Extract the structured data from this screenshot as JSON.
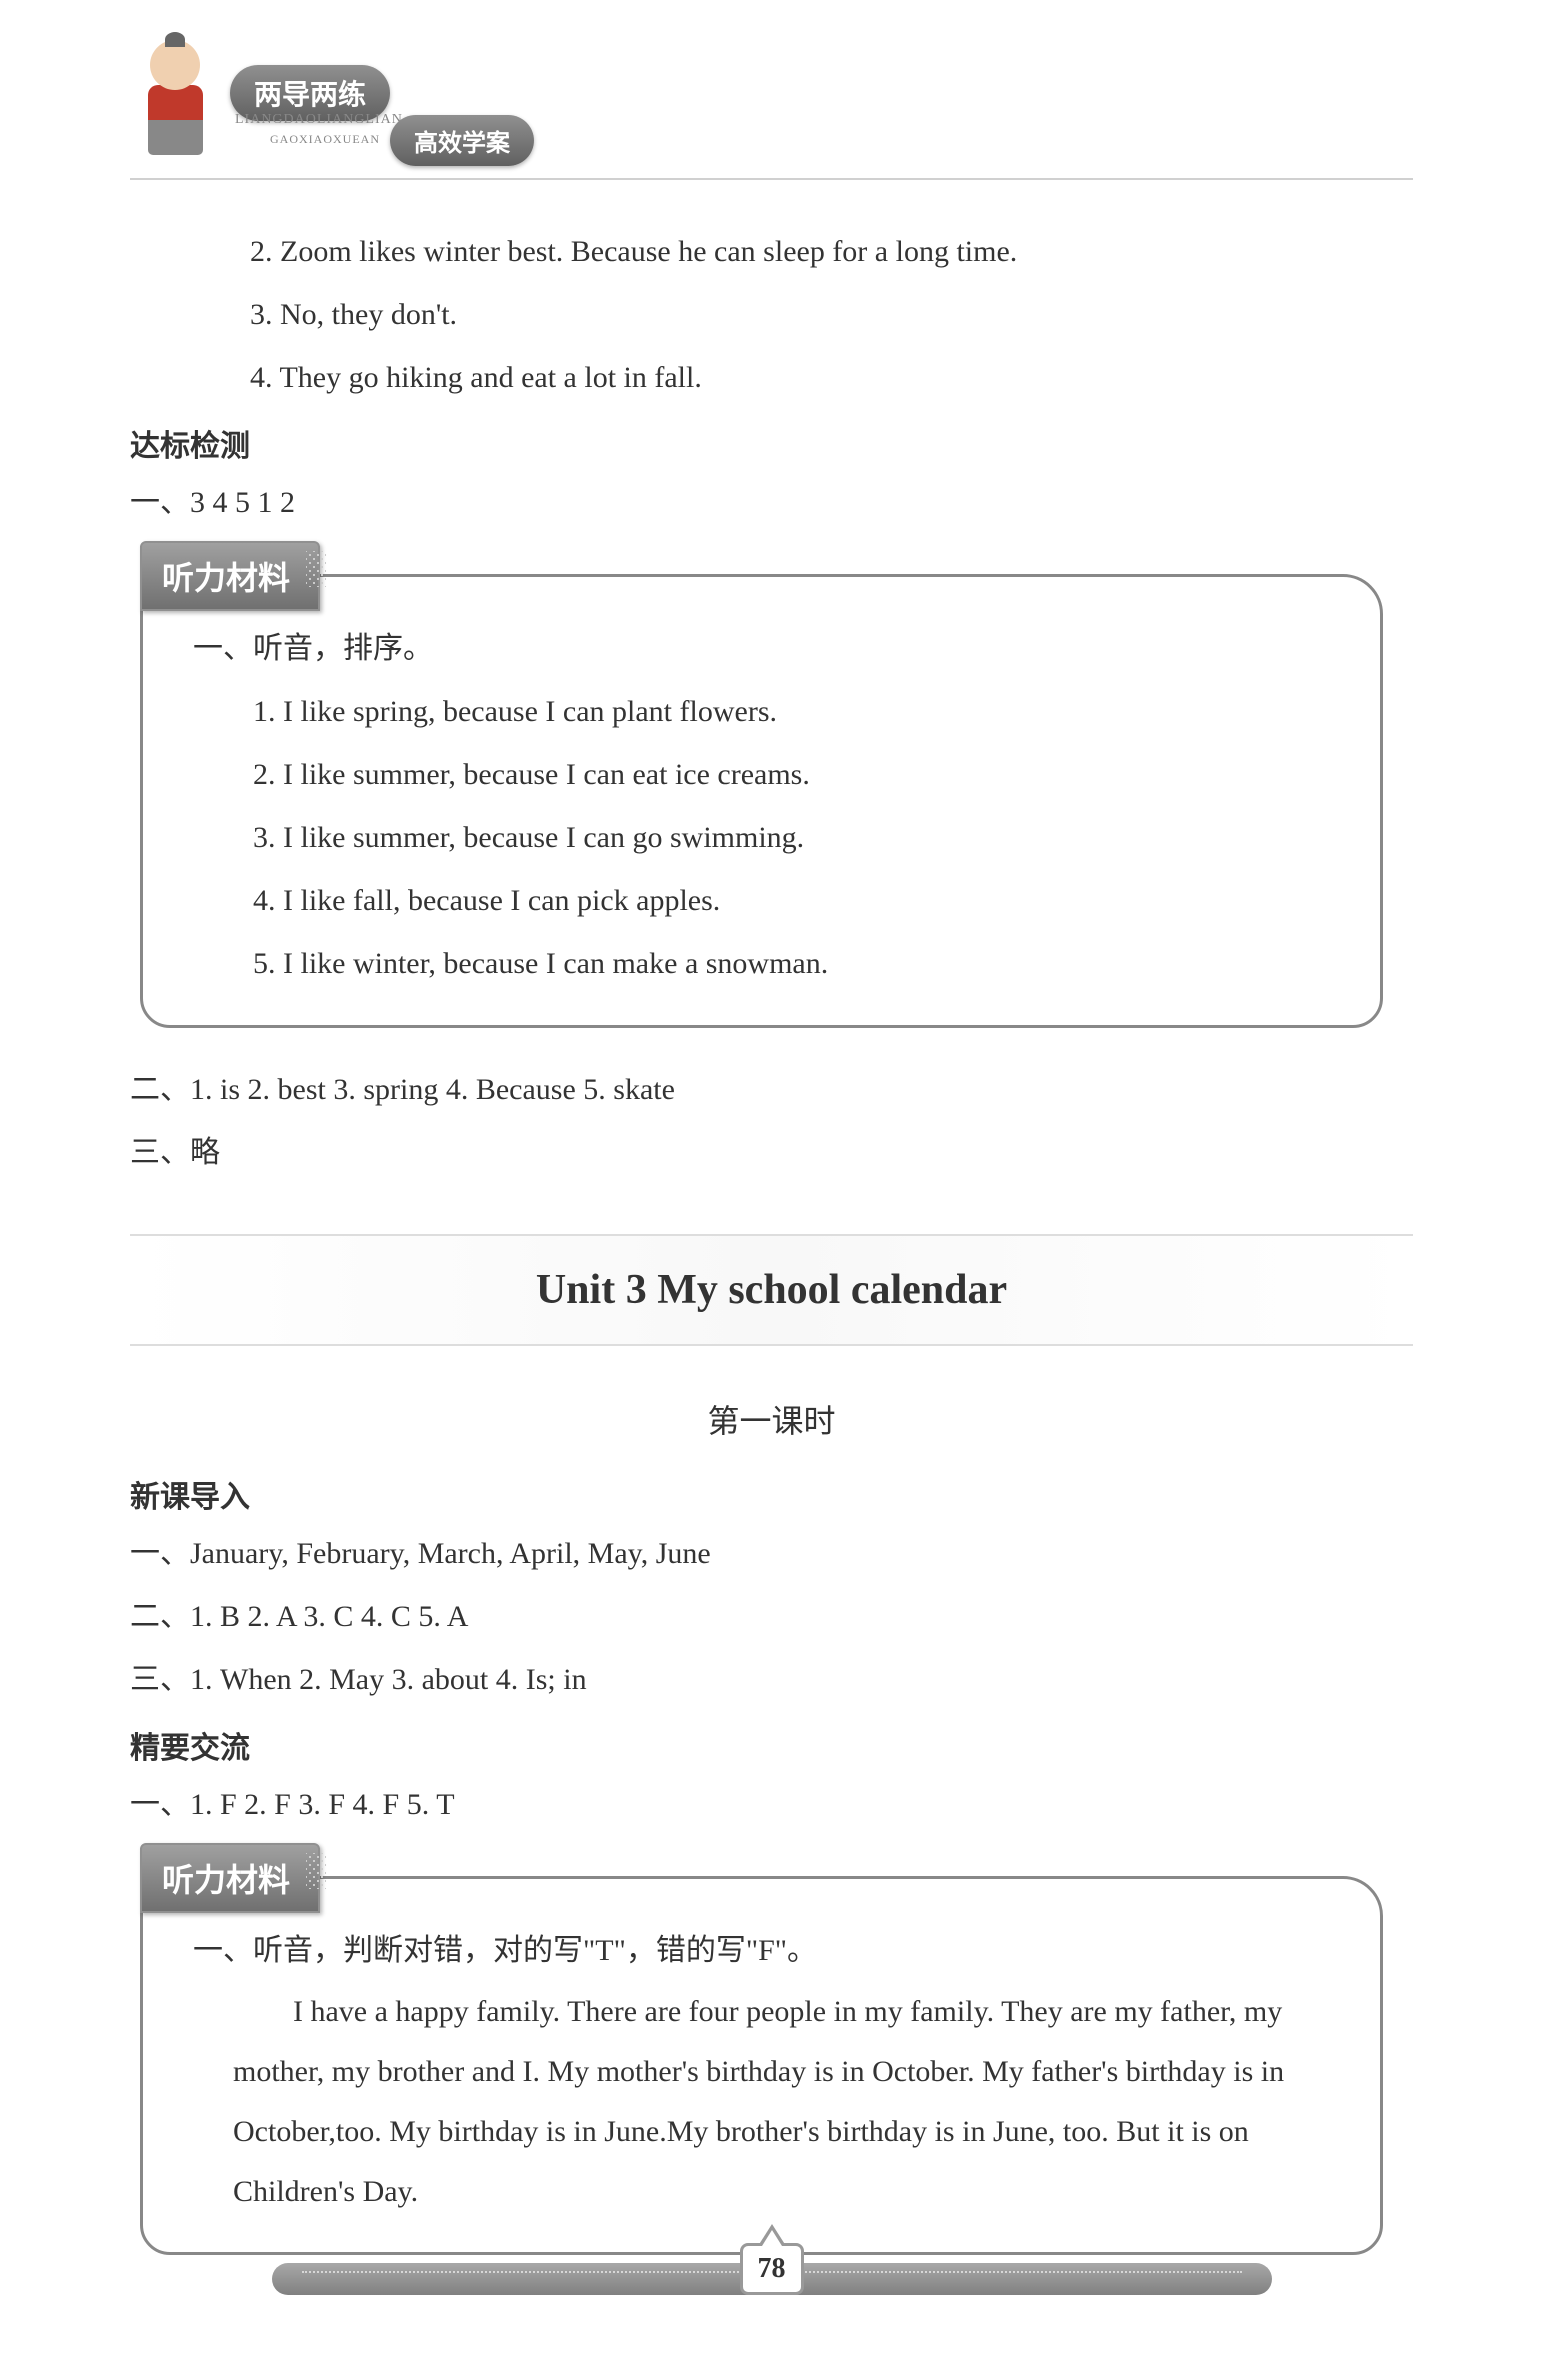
{
  "header": {
    "badge_primary": "两导两练",
    "pinyin1": "LIANGDAOLIANGLIAN",
    "pinyin2": "GAOXIAOXUEAN",
    "badge_secondary": "高效学案"
  },
  "top_answers": {
    "line2": "2. Zoom likes winter best. Because he can sleep for a long time.",
    "line3": "3. No, they don't.",
    "line4": "4. They go hiking and eat a lot in fall."
  },
  "dabiao_heading": "达标检测",
  "dabiao_line1": "一、3  4  5  1  2",
  "listening1": {
    "tab": "听力材料",
    "title": "一、听音，排序。",
    "items": [
      "1. I like spring, because I can plant flowers.",
      "2. I like summer, because I can eat ice creams.",
      "3. I like summer, because I can go swimming.",
      "4. I like fall, because I can pick apples.",
      "5. I like winter, because I can make a snowman."
    ]
  },
  "after_box1": {
    "line2": "二、1. is  2. best  3. spring  4. Because  5. skate",
    "line3": "三、略"
  },
  "unit_title": "Unit 3 My school calendar",
  "lesson_title": "第一课时",
  "xinke_heading": "新课导入",
  "xinke": {
    "line1": "一、January, February, March, April, May, June",
    "line2": "二、1. B  2. A  3. C  4. C  5. A",
    "line3": "三、1. When  2. May  3. about  4. Is; in"
  },
  "jingyao_heading": "精要交流",
  "jingyao_line1": "一、1. F  2. F  3. F  4. F  5. T",
  "listening2": {
    "tab": "听力材料",
    "title": "一、听音，判断对错，对的写\"T\"，错的写\"F\"。",
    "paragraph": "I have a happy family. There are four people in my family. They are my father, my mother, my brother and I. My mother's birthday is in October. My father's birthday is in October,too. My birthday is in June.My brother's birthday is in June, too. But it is on Children's Day."
  },
  "page_number": "78"
}
